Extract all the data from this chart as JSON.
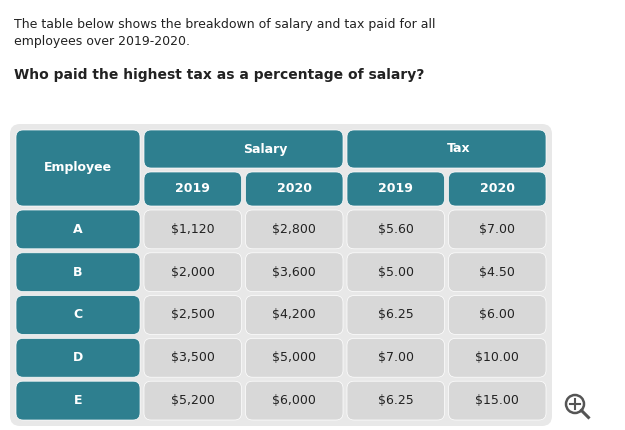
{
  "intro_text_line1": "The table below shows the breakdown of salary and tax paid for all",
  "intro_text_line2": "employees over 2019-2020.",
  "question_text": "Who paid the highest tax as a percentage of salary?",
  "header_group1": "Salary",
  "header_group2": "Tax",
  "col_headers": [
    "2019",
    "2020",
    "2019",
    "2020"
  ],
  "row_labels": [
    "A",
    "B",
    "C",
    "D",
    "E"
  ],
  "data": [
    [
      "$1,120",
      "$2,800",
      "$5.60",
      "$7.00"
    ],
    [
      "$2,000",
      "$3,600",
      "$5.00",
      "$4.50"
    ],
    [
      "$2,500",
      "$4,200",
      "$6.25",
      "$6.00"
    ],
    [
      "$3,500",
      "$5,000",
      "$7.00",
      "$10.00"
    ],
    [
      "$5,200",
      "$6,000",
      "$6.25",
      "$15.00"
    ]
  ],
  "teal_color": "#2e7f8f",
  "light_gray": "#d8d8d8",
  "table_bg": "#e8e8e8",
  "white": "#ffffff",
  "dark_text": "#222222",
  "white_text": "#ffffff",
  "fig_w": 6.25,
  "fig_h": 4.3,
  "dpi": 100
}
